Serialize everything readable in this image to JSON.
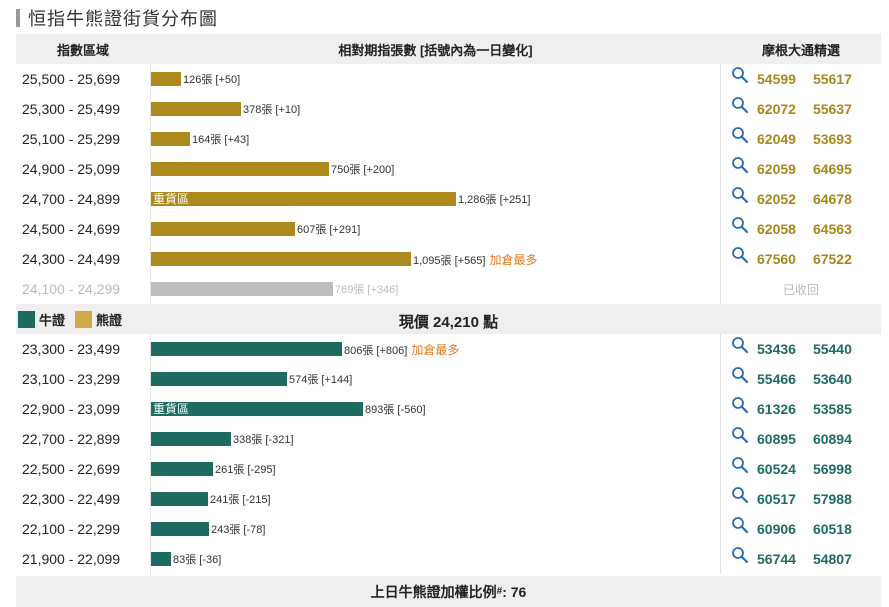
{
  "page": {
    "title": "恒指牛熊證街貨分布圖"
  },
  "header": {
    "col_range": "指數區域",
    "col_contracts": "相對期指張數 [括號內為一日變化]",
    "col_picks": "摩根大通精選"
  },
  "divider": {
    "legend_bull": "牛證",
    "legend_bear": "熊證",
    "price_label": "現價 24,210 點"
  },
  "bear_rows": [
    {
      "range": "25,500 - 25,699",
      "contracts": 126,
      "label": "126張 [+50]",
      "heavy": "",
      "note": "",
      "code1": "54599",
      "code2": "55617"
    },
    {
      "range": "25,300 - 25,499",
      "contracts": 378,
      "label": "378張 [+10]",
      "heavy": "",
      "note": "",
      "code1": "62072",
      "code2": "55637"
    },
    {
      "range": "25,100 - 25,299",
      "contracts": 164,
      "label": "164張 [+43]",
      "heavy": "",
      "note": "",
      "code1": "62049",
      "code2": "53693"
    },
    {
      "range": "24,900 - 25,099",
      "contracts": 750,
      "label": "750張 [+200]",
      "heavy": "",
      "note": "",
      "code1": "62059",
      "code2": "64695"
    },
    {
      "range": "24,700 - 24,899",
      "contracts": 1286,
      "label": "1,286張 [+251]",
      "heavy": "重貨區",
      "note": "",
      "code1": "62052",
      "code2": "64678"
    },
    {
      "range": "24,500 - 24,699",
      "contracts": 607,
      "label": "607張 [+291]",
      "heavy": "",
      "note": "",
      "code1": "62058",
      "code2": "64563"
    },
    {
      "range": "24,300 - 24,499",
      "contracts": 1095,
      "label": "1,095張 [+565]",
      "heavy": "",
      "note": "加倉最多",
      "code1": "67560",
      "code2": "67522"
    }
  ],
  "recalled_row": {
    "range": "24,100 - 24,299",
    "contracts": 769,
    "label": "769張 [+346]",
    "status": "已收回"
  },
  "bull_rows": [
    {
      "range": "23,300 - 23,499",
      "contracts": 806,
      "label": "806張 [+806]",
      "heavy": "",
      "note": "加倉最多",
      "code1": "53436",
      "code2": "55440"
    },
    {
      "range": "23,100 - 23,299",
      "contracts": 574,
      "label": "574張 [+144]",
      "heavy": "",
      "note": "",
      "code1": "55466",
      "code2": "53640"
    },
    {
      "range": "22,900 - 23,099",
      "contracts": 893,
      "label": "893張 [-560]",
      "heavy": "重貨區",
      "note": "",
      "code1": "61326",
      "code2": "53585"
    },
    {
      "range": "22,700 - 22,899",
      "contracts": 338,
      "label": "338張 [-321]",
      "heavy": "",
      "note": "",
      "code1": "60895",
      "code2": "60894"
    },
    {
      "range": "22,500 - 22,699",
      "contracts": 261,
      "label": "261張 [-295]",
      "heavy": "",
      "note": "",
      "code1": "60524",
      "code2": "56998"
    },
    {
      "range": "22,300 - 22,499",
      "contracts": 241,
      "label": "241張 [-215]",
      "heavy": "",
      "note": "",
      "code1": "60517",
      "code2": "57988"
    },
    {
      "range": "22,100 - 22,299",
      "contracts": 243,
      "label": "243張 [-78]",
      "heavy": "",
      "note": "",
      "code1": "60906",
      "code2": "60518"
    },
    {
      "range": "21,900 - 22,099",
      "contracts": 83,
      "label": "83張 [-36]",
      "heavy": "",
      "note": "",
      "code1": "56744",
      "code2": "54807"
    }
  ],
  "footer": {
    "text": "上日牛熊證加權比例",
    "mark": "#",
    "value": ": 76"
  },
  "colors": {
    "bear": "#ad8a1e",
    "bull": "#1f6b62",
    "recalled": "#bdbdbd",
    "note": "#e07b20"
  },
  "icons": {
    "search": "search-icon"
  }
}
